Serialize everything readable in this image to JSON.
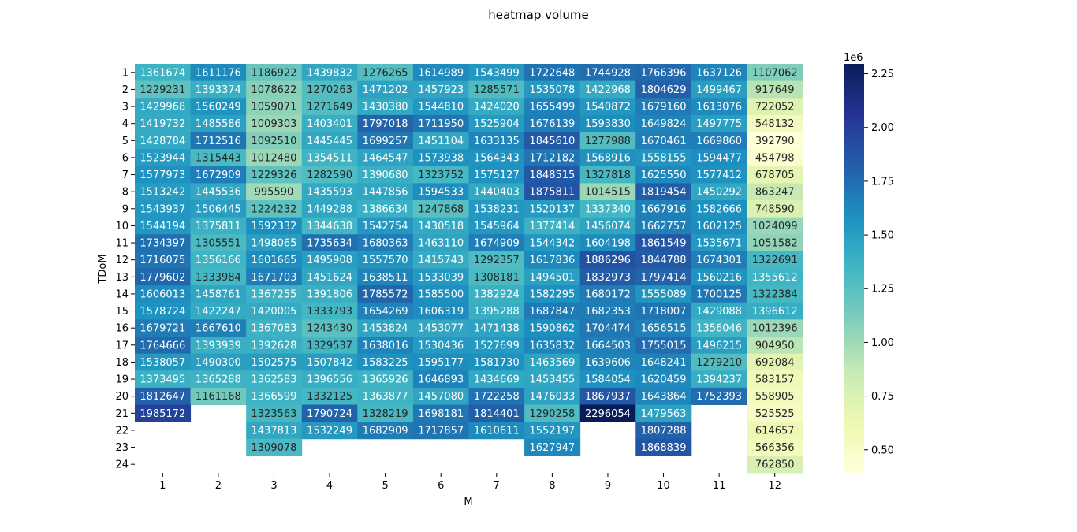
{
  "chart_data": {
    "type": "heatmap",
    "title": "heatmap volume",
    "xlabel": "M",
    "ylabel": "TDoM",
    "x_categories": [
      "1",
      "2",
      "3",
      "4",
      "5",
      "6",
      "7",
      "8",
      "9",
      "10",
      "11",
      "12"
    ],
    "y_categories": [
      "1",
      "2",
      "3",
      "4",
      "5",
      "6",
      "7",
      "8",
      "9",
      "10",
      "11",
      "12",
      "13",
      "14",
      "15",
      "16",
      "17",
      "18",
      "19",
      "20",
      "21",
      "22",
      "23",
      "24"
    ],
    "values": [
      [
        1361674,
        1611176,
        1186922,
        1439832,
        1276265,
        1614989,
        1543499,
        1722648,
        1744928,
        1766396,
        1637126,
        1107062
      ],
      [
        1229231,
        1393374,
        1078622,
        1270263,
        1471202,
        1457923,
        1285571,
        1535078,
        1422968,
        1804629,
        1499467,
        917649
      ],
      [
        1429968,
        1560249,
        1059071,
        1271649,
        1430380,
        1544810,
        1424020,
        1655499,
        1540872,
        1679160,
        1613076,
        722052
      ],
      [
        1419732,
        1485586,
        1009303,
        1403401,
        1797018,
        1711950,
        1525904,
        1676139,
        1593830,
        1649824,
        1497775,
        548132
      ],
      [
        1428784,
        1712516,
        1092510,
        1445445,
        1699257,
        1451104,
        1633135,
        1845610,
        1277988,
        1670461,
        1669860,
        392790
      ],
      [
        1523944,
        1315443,
        1012480,
        1354511,
        1464547,
        1573938,
        1564343,
        1712182,
        1568916,
        1558155,
        1594477,
        454798
      ],
      [
        1577973,
        1672909,
        1229326,
        1282590,
        1390680,
        1323752,
        1575127,
        1848515,
        1327818,
        1625550,
        1577412,
        678705
      ],
      [
        1513242,
        1445536,
        995590,
        1435593,
        1447856,
        1594533,
        1440403,
        1875811,
        1014515,
        1819454,
        1450292,
        863247
      ],
      [
        1543937,
        1506445,
        1224232,
        1449288,
        1386634,
        1247868,
        1538231,
        1520137,
        1337340,
        1667916,
        1582666,
        748590
      ],
      [
        1544194,
        1375811,
        1592332,
        1344638,
        1542754,
        1430518,
        1545964,
        1377414,
        1456074,
        1662757,
        1602125,
        1024099
      ],
      [
        1734397,
        1305551,
        1498065,
        1735634,
        1680363,
        1463110,
        1674909,
        1544342,
        1604198,
        1861549,
        1535671,
        1051582
      ],
      [
        1716075,
        1356166,
        1601665,
        1495908,
        1557570,
        1415743,
        1292357,
        1617836,
        1886296,
        1844788,
        1674301,
        1322691
      ],
      [
        1779602,
        1333984,
        1671703,
        1451624,
        1638511,
        1533039,
        1308181,
        1494501,
        1832973,
        1797414,
        1560216,
        1355612
      ],
      [
        1606013,
        1458761,
        1367255,
        1391806,
        1785572,
        1585500,
        1382924,
        1582295,
        1680172,
        1555089,
        1700125,
        1322384
      ],
      [
        1578724,
        1422247,
        1420005,
        1333793,
        1654269,
        1606319,
        1395288,
        1687847,
        1682353,
        1718007,
        1429088,
        1396612
      ],
      [
        1679721,
        1667610,
        1367083,
        1243430,
        1453824,
        1453077,
        1471438,
        1590862,
        1704474,
        1656515,
        1356046,
        1012396
      ],
      [
        1764666,
        1393939,
        1392628,
        1329537,
        1638016,
        1530436,
        1527699,
        1635832,
        1664503,
        1755015,
        1496215,
        904950
      ],
      [
        1538057,
        1490300,
        1502575,
        1507842,
        1583225,
        1595177,
        1581730,
        1463569,
        1639606,
        1648241,
        1279210,
        692084
      ],
      [
        1373495,
        1365288,
        1362583,
        1396556,
        1365926,
        1646893,
        1434669,
        1453455,
        1584054,
        1620459,
        1394237,
        583157
      ],
      [
        1812647,
        1161168,
        1366599,
        1332125,
        1363877,
        1457080,
        1722258,
        1476033,
        1867937,
        1643864,
        1752393,
        558905
      ],
      [
        1985172,
        null,
        1323563,
        1790724,
        1328219,
        1698181,
        1814401,
        1290258,
        2296054,
        1479563,
        null,
        525525
      ],
      [
        null,
        null,
        1437813,
        1532249,
        1682909,
        1717857,
        1610611,
        1552197,
        null,
        1807288,
        null,
        614657
      ],
      [
        null,
        null,
        1309078,
        null,
        null,
        null,
        null,
        1627947,
        null,
        1868839,
        null,
        566356
      ],
      [
        null,
        null,
        null,
        null,
        null,
        null,
        null,
        null,
        null,
        null,
        null,
        762850
      ]
    ],
    "colormap": "YlGnBu",
    "vmin": 392790,
    "vmax": 2296054,
    "colorbar": {
      "ticks": [
        "0.50",
        "0.75",
        "1.00",
        "1.25",
        "1.50",
        "1.75",
        "2.00",
        "2.25"
      ],
      "tick_values": [
        500000,
        750000,
        1000000,
        1250000,
        1500000,
        1750000,
        2000000,
        2250000
      ],
      "offset_label": "1e6"
    },
    "colors": {
      "text_dark": "#262626",
      "text_light": "#ffffff"
    }
  }
}
